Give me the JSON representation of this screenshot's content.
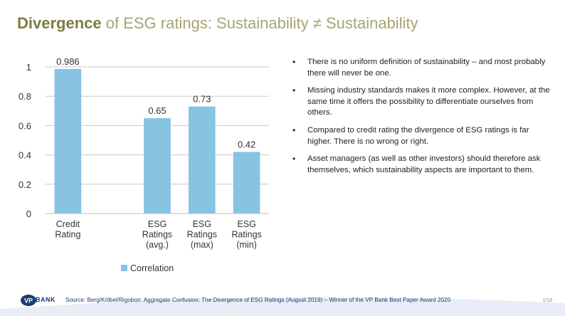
{
  "title": {
    "strong": "Divergence",
    "rest": " of ESG ratings: Sustainability ≠ Sustainability"
  },
  "chart_data": {
    "type": "bar",
    "categories": [
      [
        "Credit",
        "Rating"
      ],
      [],
      [
        "ESG",
        "Ratings",
        "(avg.)"
      ],
      [
        "ESG",
        "Ratings",
        "(max)"
      ],
      [
        "ESG",
        "Ratings",
        "(min)"
      ]
    ],
    "series": [
      {
        "name": "Correlation",
        "values": [
          0.986,
          null,
          0.65,
          0.73,
          0.42
        ],
        "labels": [
          "0.986",
          "",
          "0.65",
          "0.73",
          "0.42"
        ]
      }
    ],
    "ylim": [
      0,
      1
    ],
    "yticks": [
      0,
      0.2,
      0.4,
      0.6,
      0.8,
      1
    ],
    "ytick_labels": [
      "0",
      "0.2",
      "0.4",
      "0.6",
      "0.8",
      "1"
    ],
    "grid": true,
    "legend_position": "bottom",
    "bar_color": "#87c3e3"
  },
  "bullets": [
    "There is no uniform definition of sustainability – and most probably there will never be one.",
    "Missing industry standards makes it more complex. However, at the same time it offers the possibility to differentiate ourselves from others.",
    "Compared to credit rating the divergence of ESG ratings is far higher. There is no wrong or right.",
    "Asset managers (as well as other investors) should therefore ask themselves, which sustainability aspects are important to them."
  ],
  "footer": {
    "logo_text": "BANK",
    "source": "Source: Berg/Kölbel/Rigobon: Aggregate Confusion: The Divergence of ESG Ratings (August 2019) – Winner of the VP Bank Best Paper Award 2020",
    "page": "1/18"
  },
  "colors": {
    "title": "#7d7d42",
    "bar": "#87c3e3",
    "brand_blue": "#1b3d73"
  }
}
